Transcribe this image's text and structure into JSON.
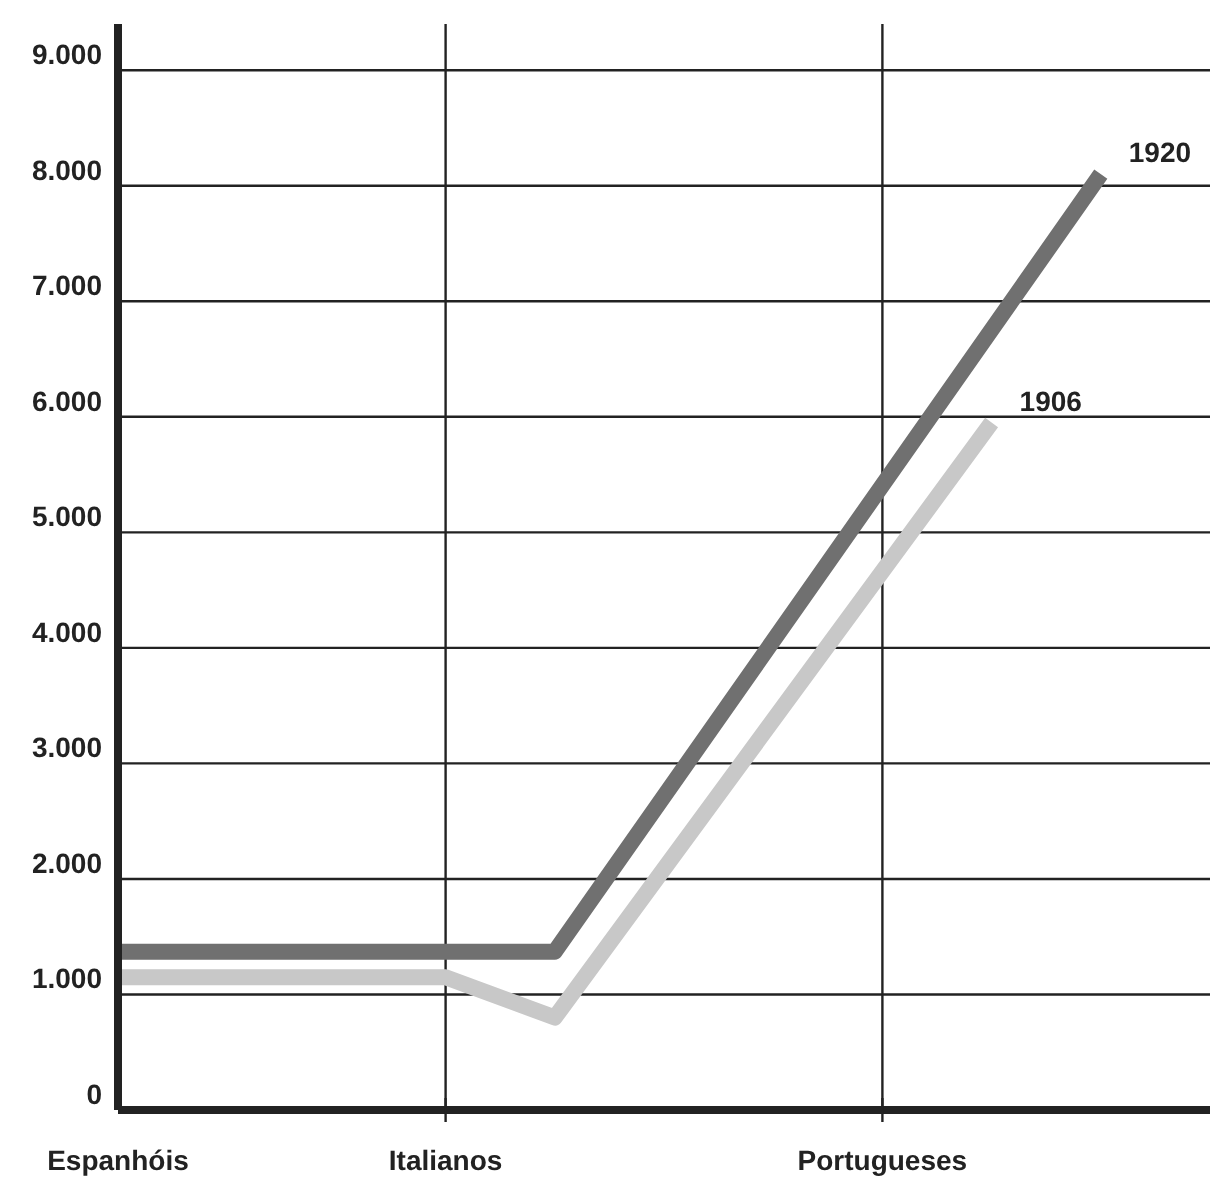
{
  "chart_data": {
    "type": "line",
    "ylim": [
      0,
      9400
    ],
    "categories": [
      "Espanhóis",
      null,
      null,
      "Italianos",
      null,
      null,
      null,
      "Portugueses",
      null,
      null,
      null
    ],
    "yticks": [
      {
        "value": 0,
        "label": "0"
      },
      {
        "value": 1000,
        "label": "1.000"
      },
      {
        "value": 2000,
        "label": "2.000"
      },
      {
        "value": 3000,
        "label": "3.000"
      },
      {
        "value": 4000,
        "label": "4.000"
      },
      {
        "value": 5000,
        "label": "5.000"
      },
      {
        "value": 6000,
        "label": "6.000"
      },
      {
        "value": 7000,
        "label": "7.000"
      },
      {
        "value": 8000,
        "label": "8.000"
      },
      {
        "value": 9000,
        "label": "9.000"
      }
    ],
    "grid": true,
    "legend": false,
    "marker": "none",
    "line_style": "solid",
    "series": [
      {
        "name": "1920",
        "color": "#707070",
        "values": [
          1370,
          null,
          null,
          null,
          1370,
          null,
          null,
          null,
          null,
          8100,
          null
        ]
      },
      {
        "name": "1906",
        "color": "#c8c8c8",
        "values": [
          1150,
          null,
          null,
          1150,
          800,
          null,
          null,
          null,
          5950,
          null,
          null
        ]
      }
    ]
  }
}
